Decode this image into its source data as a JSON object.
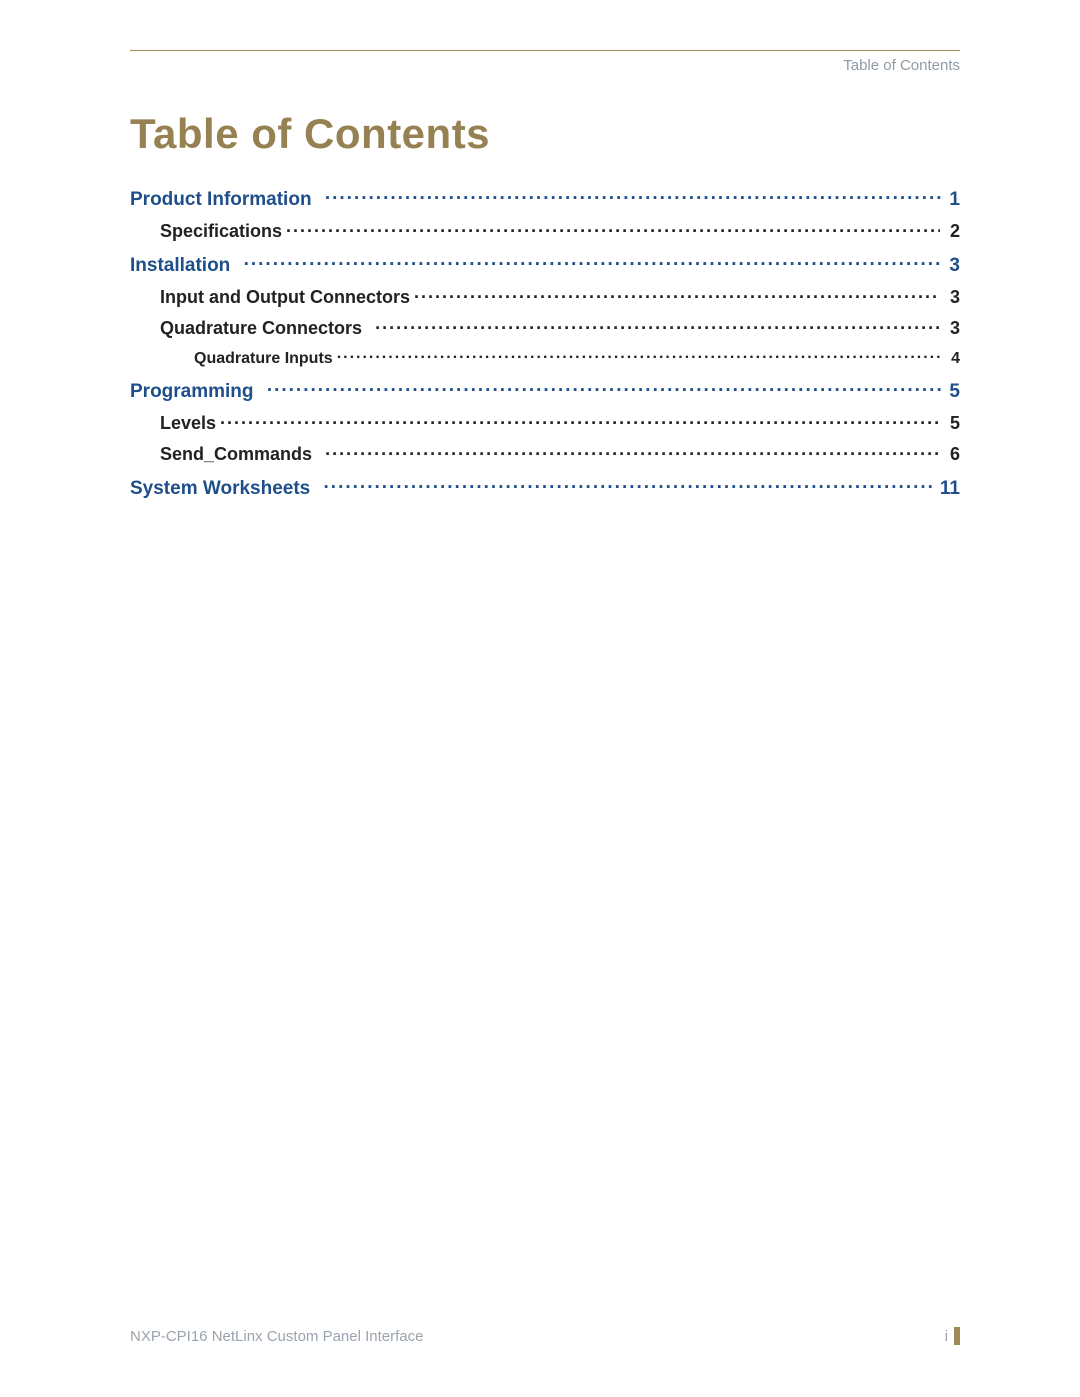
{
  "colors": {
    "rule": "#a08a5a",
    "header_text": "#8e9aa6",
    "title": "#968152",
    "level1": "#1e4f8a",
    "body": "#222222",
    "footer_text": "#9aa4ad",
    "background": "#ffffff"
  },
  "typography": {
    "title_size_pt": 32,
    "title_weight": 600,
    "lvl1_size_pt": 14,
    "lvl1_weight": 600,
    "lvl2_size_pt": 13,
    "lvl2_weight": 600,
    "lvl3_size_pt": 12,
    "lvl3_weight": 600,
    "footer_size_pt": 11
  },
  "header": {
    "label": "Table of Contents"
  },
  "title": "Table of Contents",
  "toc": [
    {
      "level": 1,
      "label": "Product Information",
      "page": "1"
    },
    {
      "level": 2,
      "label": "Specifications",
      "page": "2"
    },
    {
      "level": 1,
      "label": "Installation",
      "page": "3"
    },
    {
      "level": 2,
      "label": "Input and Output Connectors",
      "page": "3"
    },
    {
      "level": 2,
      "label": "Quadrature Connectors",
      "page": "3"
    },
    {
      "level": 3,
      "label": "Quadrature Inputs",
      "page": "4"
    },
    {
      "level": 1,
      "label": "Programming",
      "page": "5"
    },
    {
      "level": 2,
      "label": "Levels",
      "page": "5"
    },
    {
      "level": 2,
      "label": "Send_Commands",
      "page": "6"
    },
    {
      "level": 1,
      "label": "System Worksheets",
      "page": "11"
    }
  ],
  "footer": {
    "left": "NXP-CPI16 NetLinx Custom Panel Interface",
    "right": "i"
  }
}
